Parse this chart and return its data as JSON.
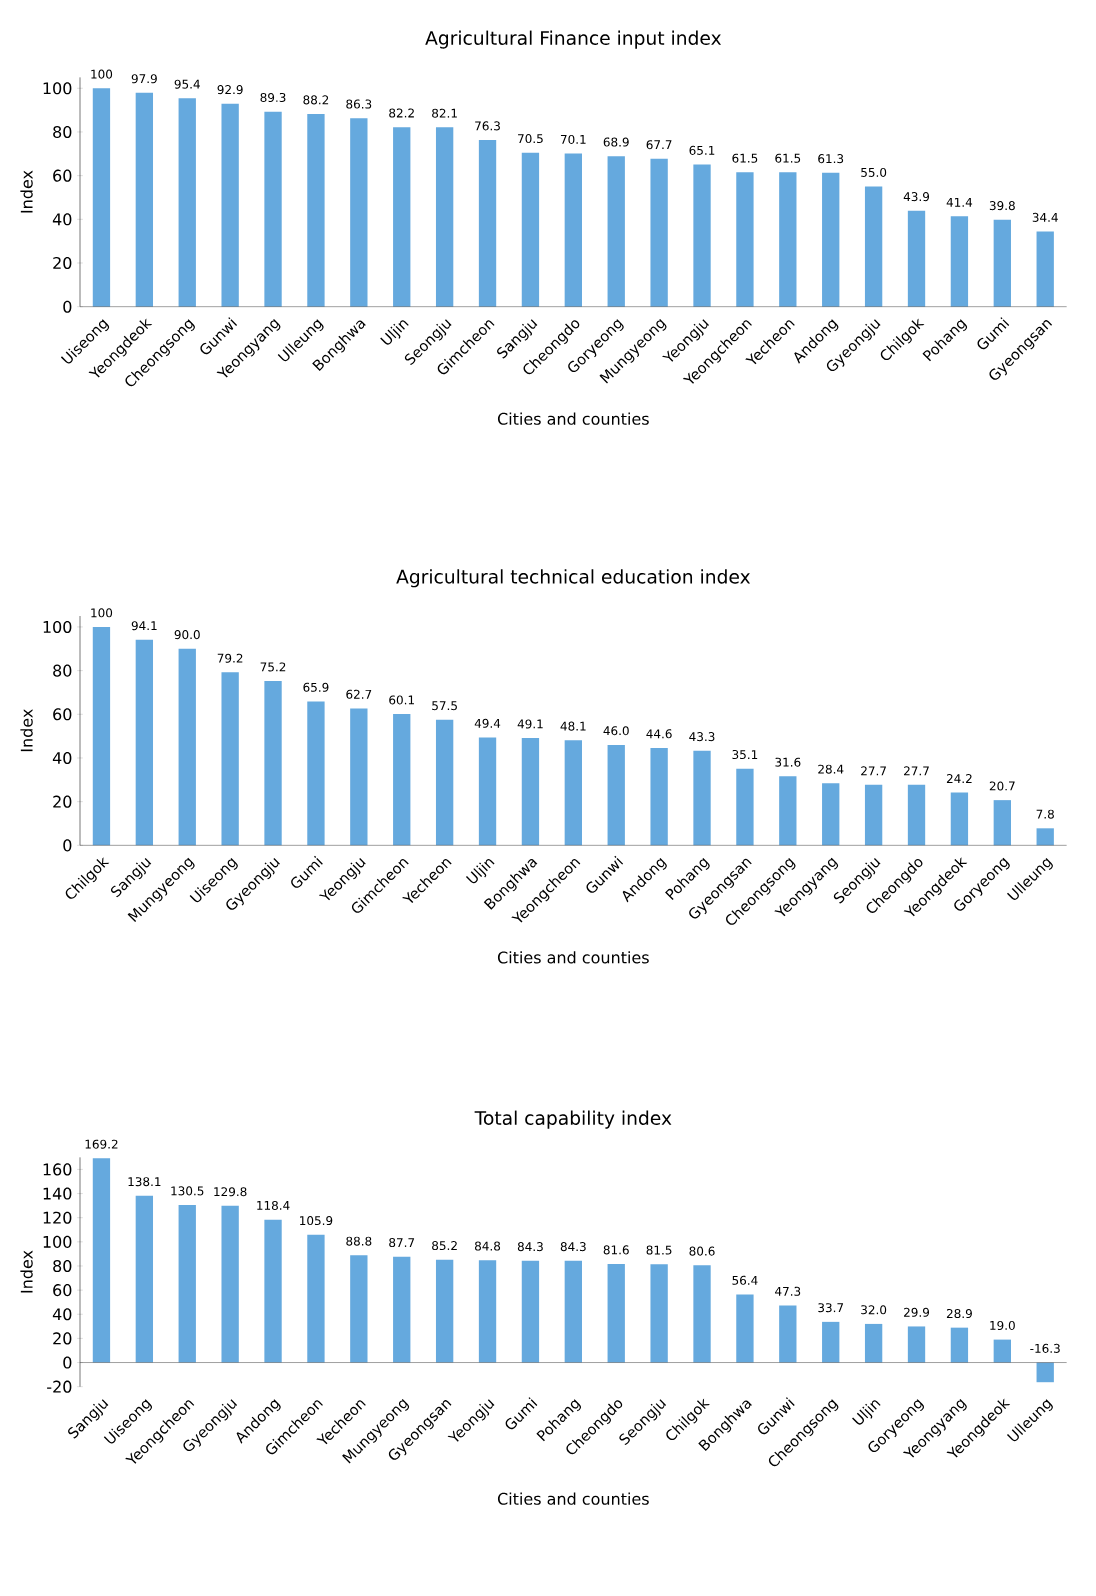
{
  "chart_data": [
    {
      "type": "bar",
      "title": "Agricultural Finance input index",
      "xlabel": "Cities and counties",
      "ylabel": "Index",
      "color": "#65a9de",
      "ylim": [
        0,
        105
      ],
      "yticks": [
        0,
        20,
        40,
        60,
        80,
        100
      ],
      "categories": [
        "Uiseong",
        "Yeongdeok",
        "Cheongsong",
        "Gunwi",
        "Yeongyang",
        "Ulleung",
        "Bonghwa",
        "Uljin",
        "Seongju",
        "Gimcheon",
        "Sangju",
        "Cheongdo",
        "Goryeong",
        "Mungyeong",
        "Yeongju",
        "Yeongcheon",
        "Yecheon",
        "Andong",
        "Gyeongju",
        "Chilgok",
        "Pohang",
        "Gumi",
        "Gyeongsan"
      ],
      "values": [
        100,
        97.9,
        95.4,
        92.9,
        89.3,
        88.2,
        86.3,
        82.2,
        82.1,
        76.3,
        70.5,
        70.1,
        68.9,
        67.7,
        65.1,
        61.5,
        61.5,
        61.3,
        55.0,
        43.9,
        41.4,
        39.8,
        34.4
      ],
      "value_labels": [
        "100",
        "97.9",
        "95.4",
        "92.9",
        "89.3",
        "88.2",
        "86.3",
        "82.2",
        "82.1",
        "76.3",
        "70.5",
        "70.1",
        "68.9",
        "67.7",
        "65.1",
        "61.5",
        "61.5",
        "61.3",
        "55.0",
        "43.9",
        "41.4",
        "39.8",
        "34.4"
      ]
    },
    {
      "type": "bar",
      "title": "Agricultural technical education index",
      "xlabel": "Cities and counties",
      "ylabel": "Index",
      "color": "#65a9de",
      "ylim": [
        0,
        105
      ],
      "yticks": [
        0,
        20,
        40,
        60,
        80,
        100
      ],
      "categories": [
        "Chilgok",
        "Sangju",
        "Mungyeong",
        "Uiseong",
        "Gyeongju",
        "Gumi",
        "Yeongju",
        "Gimcheon",
        "Yecheon",
        "Uljin",
        "Bonghwa",
        "Yeongcheon",
        "Gunwi",
        "Andong",
        "Pohang",
        "Gyeongsan",
        "Cheongsong",
        "Yeongyang",
        "Seongju",
        "Cheongdo",
        "Yeongdeok",
        "Goryeong",
        "Ulleung"
      ],
      "values": [
        100,
        94.1,
        90.0,
        79.2,
        75.2,
        65.9,
        62.7,
        60.1,
        57.5,
        49.4,
        49.1,
        48.1,
        46.0,
        44.6,
        43.3,
        35.1,
        31.6,
        28.4,
        27.7,
        27.7,
        24.2,
        20.7,
        7.8
      ],
      "value_labels": [
        "100",
        "94.1",
        "90.0",
        "79.2",
        "75.2",
        "65.9",
        "62.7",
        "60.1",
        "57.5",
        "49.4",
        "49.1",
        "48.1",
        "46.0",
        "44.6",
        "43.3",
        "35.1",
        "31.6",
        "28.4",
        "27.7",
        "27.7",
        "24.2",
        "20.7",
        "7.8"
      ]
    },
    {
      "type": "bar",
      "title": "Total capability index",
      "xlabel": "Cities and counties",
      "ylabel": "Index",
      "color": "#65a9de",
      "ylim": [
        -20,
        170
      ],
      "yticks": [
        -20,
        0,
        20,
        40,
        60,
        80,
        100,
        120,
        140,
        160
      ],
      "categories": [
        "Sangju",
        "Uiseong",
        "Yeongcheon",
        "Gyeongju",
        "Andong",
        "Gimcheon",
        "Yecheon",
        "Mungyeong",
        "Gyeongsan",
        "Yeongju",
        "Gumi",
        "Pohang",
        "Cheongdo",
        "Seongju",
        "Chilgok",
        "Bonghwa",
        "Gunwi",
        "Cheongsong",
        "Uljin",
        "Goryeong",
        "Yeongyang",
        "Yeongdeok",
        "Ulleung"
      ],
      "values": [
        169.2,
        138.1,
        130.5,
        129.8,
        118.4,
        105.9,
        88.8,
        87.7,
        85.2,
        84.8,
        84.3,
        84.3,
        81.6,
        81.5,
        80.6,
        56.4,
        47.3,
        33.7,
        32.0,
        29.9,
        28.9,
        19.0,
        -16.3
      ],
      "value_labels": [
        "169.2",
        "138.1",
        "130.5",
        "129.8",
        "118.4",
        "105.9",
        "88.8",
        "87.7",
        "85.2",
        "84.8",
        "84.3",
        "84.3",
        "81.6",
        "81.5",
        "80.6",
        "56.4",
        "47.3",
        "33.7",
        "32.0",
        "29.9",
        "28.9",
        "19.0",
        "-16.3"
      ]
    }
  ]
}
